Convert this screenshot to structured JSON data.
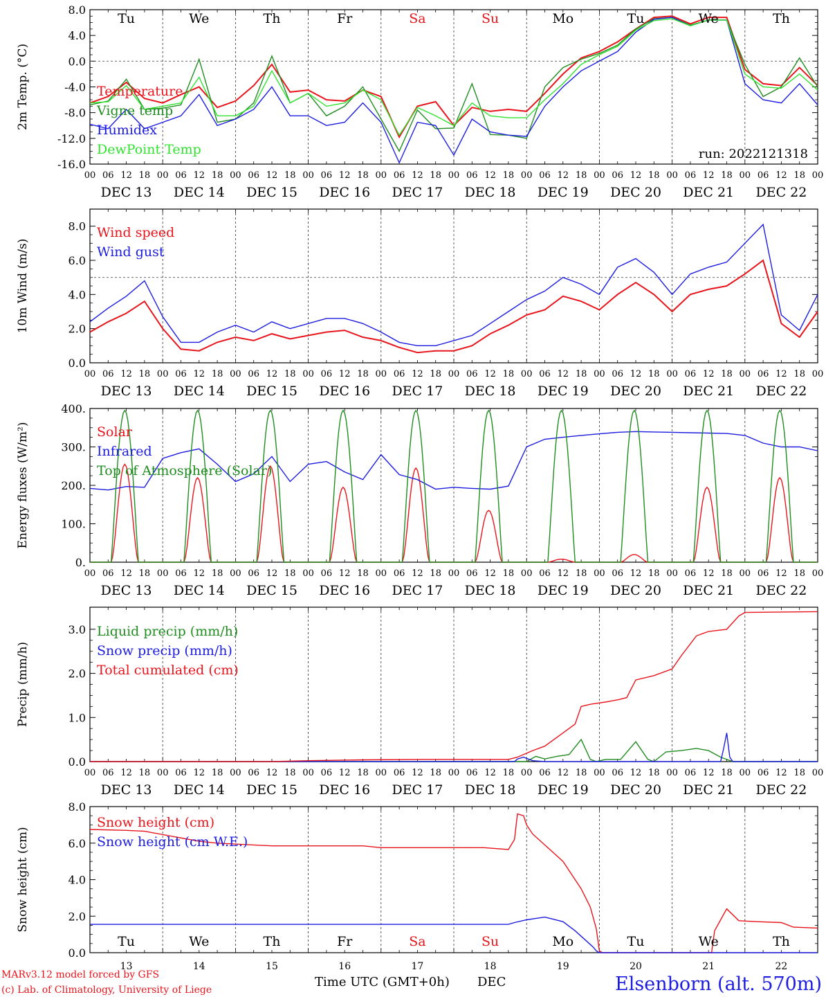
{
  "run_label": "run: 2022121318",
  "footer": {
    "model_line": "MARv3.12 model forced by GFS",
    "credit_line": "(c) Lab. of Climatology, University of Liege",
    "station": "Elsenborn (alt. 570m)",
    "xlabel": "Time UTC (GMT+0h)",
    "month": "DEC"
  },
  "colors": {
    "red": "#e8141b",
    "green": "#1f8c1f",
    "blue": "#1c1ce0",
    "lightgreen": "#2fe32f",
    "weekend": "#e8141b"
  },
  "chart_data": [
    {
      "id": "temp",
      "type": "line",
      "ylabel": "2m Temp. (°C)",
      "ylim": [
        -16,
        8
      ],
      "yticks": [
        "8.0",
        "4.0",
        "0.0",
        "-4.0",
        "-8.0",
        "-12.0",
        "-16.0"
      ],
      "reference_line": 0,
      "x_unit": "hours since DEC 13 00 UTC",
      "series": [
        {
          "name": "Temperature",
          "color": "red",
          "x": [
            0,
            6,
            12,
            18,
            24,
            30,
            36,
            42,
            48,
            54,
            60,
            66,
            72,
            78,
            84,
            90,
            96,
            102,
            108,
            114,
            120,
            126,
            132,
            138,
            144,
            150,
            156,
            162,
            168,
            174,
            180,
            186,
            192,
            198,
            204,
            210,
            216,
            222,
            228,
            234,
            240
          ],
          "y": [
            -6.5,
            -5.5,
            -3.3,
            -5.8,
            -6.5,
            -5.2,
            -4,
            -7.2,
            -6.2,
            -3.8,
            -0.5,
            -4.8,
            -4.5,
            -6,
            -6.2,
            -4.5,
            -5.5,
            -11.8,
            -7,
            -6.3,
            -10,
            -7.2,
            -7.8,
            -7.5,
            -7.8,
            -5,
            -2,
            0.5,
            1.5,
            3,
            5,
            6.8,
            7,
            5.8,
            6.8,
            6.8,
            -1.3,
            -3.5,
            -3.8,
            -1,
            -3.8
          ]
        },
        {
          "name": "Vigne temp",
          "color": "green",
          "x": [
            0,
            6,
            12,
            18,
            24,
            30,
            36,
            42,
            48,
            54,
            60,
            66,
            72,
            78,
            84,
            90,
            96,
            102,
            108,
            114,
            120,
            126,
            132,
            138,
            144,
            150,
            156,
            162,
            168,
            174,
            180,
            186,
            192,
            198,
            204,
            210,
            216,
            222,
            228,
            234,
            240
          ],
          "y": [
            -6.8,
            -6.2,
            -2.8,
            -7.5,
            -7.3,
            -6.8,
            0.3,
            -9.5,
            -9,
            -6.5,
            0.8,
            -6.5,
            -5,
            -8.5,
            -7,
            -4,
            -9,
            -14,
            -7.6,
            -10.5,
            -10.4,
            -3.5,
            -11.4,
            -11.5,
            -12,
            -4,
            -1,
            0.3,
            1.2,
            2.5,
            5,
            6.6,
            6.8,
            5.6,
            6.4,
            6.4,
            -0.5,
            -5.5,
            -4,
            0.5,
            -4
          ]
        },
        {
          "name": "Humidex",
          "color": "blue",
          "x": [
            0,
            6,
            12,
            18,
            24,
            30,
            36,
            42,
            48,
            54,
            60,
            66,
            72,
            78,
            84,
            90,
            96,
            102,
            108,
            114,
            120,
            126,
            132,
            138,
            144,
            150,
            156,
            162,
            168,
            174,
            180,
            186,
            192,
            198,
            204,
            210,
            216,
            222,
            228,
            234,
            240
          ],
          "y": [
            -9.8,
            -10.5,
            -7.5,
            -10.5,
            -9.5,
            -8.5,
            -5.2,
            -10,
            -9,
            -7.5,
            -4,
            -8.5,
            -8.5,
            -10,
            -9.5,
            -6.5,
            -9.5,
            -15.8,
            -9.5,
            -10,
            -14.6,
            -9,
            -11,
            -11.5,
            -11.7,
            -7,
            -4,
            -1.5,
            0,
            1.5,
            4.5,
            6.5,
            6.8,
            5.5,
            6.4,
            6.4,
            -3.5,
            -6,
            -6.5,
            -3.5,
            -6.8
          ]
        },
        {
          "name": "DewPoint Temp",
          "color": "lightgreen",
          "x": [
            0,
            6,
            12,
            18,
            24,
            30,
            36,
            42,
            48,
            54,
            60,
            66,
            72,
            78,
            84,
            90,
            96,
            102,
            108,
            114,
            120,
            126,
            132,
            138,
            144,
            150,
            156,
            162,
            168,
            174,
            180,
            186,
            192,
            198,
            204,
            210,
            216,
            222,
            228,
            234,
            240
          ],
          "y": [
            -6.5,
            -6.3,
            -3.8,
            -7.5,
            -7,
            -6.5,
            -2.5,
            -8.5,
            -8.5,
            -7,
            -1.5,
            -6.5,
            -5,
            -7,
            -6.5,
            -4.5,
            -6,
            -11.5,
            -7.2,
            -8.5,
            -10,
            -6.5,
            -8.5,
            -8.8,
            -8.8,
            -6,
            -3.5,
            -0.5,
            1,
            2.3,
            4.8,
            6.3,
            6.6,
            5.5,
            6.4,
            6.4,
            -2,
            -4,
            -4.2,
            -2,
            -4.5
          ]
        }
      ]
    },
    {
      "id": "wind",
      "type": "line",
      "ylabel": "10m Wind (m/s)",
      "ylim": [
        0,
        9
      ],
      "yticks": [
        "8.0",
        "6.0",
        "4.0",
        "2.0",
        "0.0"
      ],
      "reference_line": 5,
      "series": [
        {
          "name": "Wind speed",
          "color": "red",
          "x": [
            0,
            6,
            12,
            18,
            24,
            30,
            36,
            42,
            48,
            54,
            60,
            66,
            72,
            78,
            84,
            90,
            96,
            102,
            108,
            114,
            120,
            126,
            132,
            138,
            144,
            150,
            156,
            162,
            168,
            174,
            180,
            186,
            192,
            198,
            204,
            210,
            216,
            222,
            228,
            234,
            240
          ],
          "y": [
            1.8,
            2.4,
            2.9,
            3.6,
            2,
            0.8,
            0.7,
            1.2,
            1.5,
            1.3,
            1.7,
            1.4,
            1.6,
            1.8,
            1.9,
            1.5,
            1.3,
            0.9,
            0.6,
            0.7,
            0.7,
            1,
            1.7,
            2.2,
            2.8,
            3.1,
            3.9,
            3.6,
            3.1,
            4,
            4.7,
            4,
            3,
            4,
            4.3,
            4.5,
            5.2,
            6,
            2.3,
            1.5,
            3
          ]
        },
        {
          "name": "Wind gust",
          "color": "blue",
          "x": [
            0,
            6,
            12,
            18,
            24,
            30,
            36,
            42,
            48,
            54,
            60,
            66,
            72,
            78,
            84,
            90,
            96,
            102,
            108,
            114,
            120,
            126,
            132,
            138,
            144,
            150,
            156,
            162,
            168,
            174,
            180,
            186,
            192,
            198,
            204,
            210,
            216,
            222,
            228,
            234,
            240
          ],
          "y": [
            2.4,
            3.2,
            3.9,
            4.8,
            2.7,
            1.2,
            1.2,
            1.8,
            2.2,
            1.8,
            2.4,
            2,
            2.3,
            2.6,
            2.6,
            2.3,
            1.8,
            1.2,
            1,
            1,
            1.3,
            1.6,
            2.3,
            3,
            3.7,
            4.2,
            5,
            4.6,
            4,
            5.6,
            6.1,
            5.3,
            4,
            5.2,
            5.6,
            5.9,
            7,
            8.1,
            2.8,
            1.9,
            4
          ]
        }
      ]
    },
    {
      "id": "energy",
      "type": "line",
      "ylabel": "Energy fluxes (W/m²)",
      "ylim": [
        0,
        400
      ],
      "yticks": [
        "400.",
        "300.",
        "200.",
        "100.",
        "0."
      ],
      "series": [
        {
          "name": "Solar",
          "color": "red",
          "peaks_hour_of_day": 12,
          "daily_peak": [
            255,
            220,
            250,
            195,
            245,
            135,
            8,
            20,
            195,
            220
          ]
        },
        {
          "name": "Infrared",
          "color": "blue",
          "x": [
            0,
            6,
            12,
            18,
            24,
            30,
            36,
            42,
            48,
            54,
            60,
            66,
            72,
            78,
            84,
            90,
            96,
            102,
            108,
            114,
            120,
            126,
            132,
            138,
            144,
            150,
            156,
            162,
            168,
            174,
            180,
            186,
            192,
            198,
            204,
            210,
            216,
            222,
            228,
            234,
            240
          ],
          "y": [
            192,
            188,
            197,
            195,
            270,
            285,
            295,
            255,
            210,
            230,
            275,
            210,
            255,
            262,
            235,
            215,
            280,
            228,
            215,
            190,
            195,
            192,
            190,
            198,
            300,
            320,
            325,
            330,
            334,
            338,
            340,
            339,
            338,
            337,
            336,
            335,
            330,
            310,
            300,
            300,
            290
          ]
        },
        {
          "name": "Top of Atmosphere (Solar)",
          "color": "green",
          "daily_peak": 395,
          "day_start_hour": 7,
          "day_end_hour": 16
        }
      ]
    },
    {
      "id": "precip",
      "type": "line",
      "ylabel": "Precip (mm/h)",
      "ylim": [
        0,
        3.5
      ],
      "yticks": [
        "3.0",
        "2.0",
        "1.0",
        "0.0"
      ],
      "series": [
        {
          "name": "Liquid precip (mm/h)",
          "color": "green",
          "x": [
            0,
            140,
            144,
            147,
            150,
            154,
            158,
            162,
            165,
            167,
            170,
            175,
            180,
            184,
            186,
            190,
            195,
            200,
            204,
            208,
            212,
            216,
            240
          ],
          "y": [
            0,
            0,
            0,
            0.12,
            0.06,
            0.12,
            0.16,
            0.5,
            0.05,
            0,
            0.05,
            0.05,
            0.45,
            0.05,
            0,
            0.22,
            0.25,
            0.3,
            0.25,
            0.1,
            0,
            0,
            0
          ]
        },
        {
          "name": "Snow precip (mm/h)",
          "color": "blue",
          "x": [
            0,
            140,
            141,
            143,
            146,
            150,
            208,
            209,
            210,
            211,
            212,
            240
          ],
          "y": [
            0,
            0,
            0.06,
            0.1,
            0.02,
            0,
            0,
            0.3,
            0.65,
            0.1,
            0,
            0
          ]
        },
        {
          "name": "Total cumulated (cm)",
          "color": "red",
          "x": [
            0,
            60,
            72,
            90,
            110,
            138,
            141,
            146,
            150,
            155,
            160,
            162,
            165,
            170,
            174,
            177,
            180,
            186,
            192,
            195,
            200,
            204,
            210,
            214,
            216,
            240
          ],
          "y": [
            0,
            0,
            0.02,
            0.04,
            0.05,
            0.05,
            0.1,
            0.25,
            0.35,
            0.6,
            0.85,
            1.25,
            1.3,
            1.35,
            1.4,
            1.45,
            1.85,
            1.95,
            2.1,
            2.4,
            2.85,
            2.95,
            3.0,
            3.3,
            3.38,
            3.4
          ]
        }
      ]
    },
    {
      "id": "snow",
      "type": "line",
      "ylabel": "Snow height (cm)",
      "ylim": [
        0,
        8
      ],
      "yticks": [
        "8.0",
        "6.0",
        "4.0",
        "2.0",
        "0.0"
      ],
      "series": [
        {
          "name": "Snow height (cm)",
          "color": "red",
          "x": [
            0,
            12,
            18,
            36,
            42,
            60,
            72,
            90,
            96,
            110,
            130,
            138,
            140,
            141,
            143,
            144,
            146,
            150,
            156,
            162,
            165,
            167,
            168,
            169,
            205,
            206,
            208,
            210,
            214,
            220,
            228,
            232,
            240
          ],
          "y": [
            6.75,
            6.7,
            6.65,
            6.1,
            6.0,
            5.85,
            5.85,
            5.85,
            5.75,
            5.75,
            5.75,
            5.65,
            6.2,
            7.6,
            7.5,
            7.0,
            6.5,
            5.9,
            5.0,
            3.5,
            2.5,
            1.3,
            0.1,
            0,
            0,
            1.2,
            1.8,
            2.4,
            1.75,
            1.7,
            1.65,
            1.4,
            1.35
          ]
        },
        {
          "name": "Snow height (cm W.E.)",
          "color": "blue",
          "x": [
            0,
            130,
            138,
            140,
            144,
            150,
            156,
            160,
            164,
            166,
            167,
            168,
            240
          ],
          "y": [
            1.55,
            1.55,
            1.55,
            1.65,
            1.8,
            1.95,
            1.7,
            1.2,
            0.6,
            0.3,
            0.1,
            0,
            0
          ]
        }
      ]
    }
  ],
  "day_labels": [
    {
      "text": "Tu",
      "weekend": false
    },
    {
      "text": "We",
      "weekend": false
    },
    {
      "text": "Th",
      "weekend": false
    },
    {
      "text": "Fr",
      "weekend": false
    },
    {
      "text": "Sa",
      "weekend": true
    },
    {
      "text": "Su",
      "weekend": true
    },
    {
      "text": "Mo",
      "weekend": false
    },
    {
      "text": "Tu",
      "weekend": false
    },
    {
      "text": "We",
      "weekend": false
    },
    {
      "text": "Th",
      "weekend": false
    }
  ],
  "hour_ticks": [
    "00",
    "06",
    "12",
    "18"
  ],
  "end_tick": "00",
  "date_labels": [
    "DEC 13",
    "DEC 14",
    "DEC 15",
    "DEC 16",
    "DEC 17",
    "DEC 18",
    "DEC 19",
    "DEC 20",
    "DEC 21",
    "DEC 22"
  ],
  "day_numbers": [
    "13",
    "14",
    "15",
    "16",
    "17",
    "18",
    "19",
    "20",
    "21",
    "22"
  ]
}
